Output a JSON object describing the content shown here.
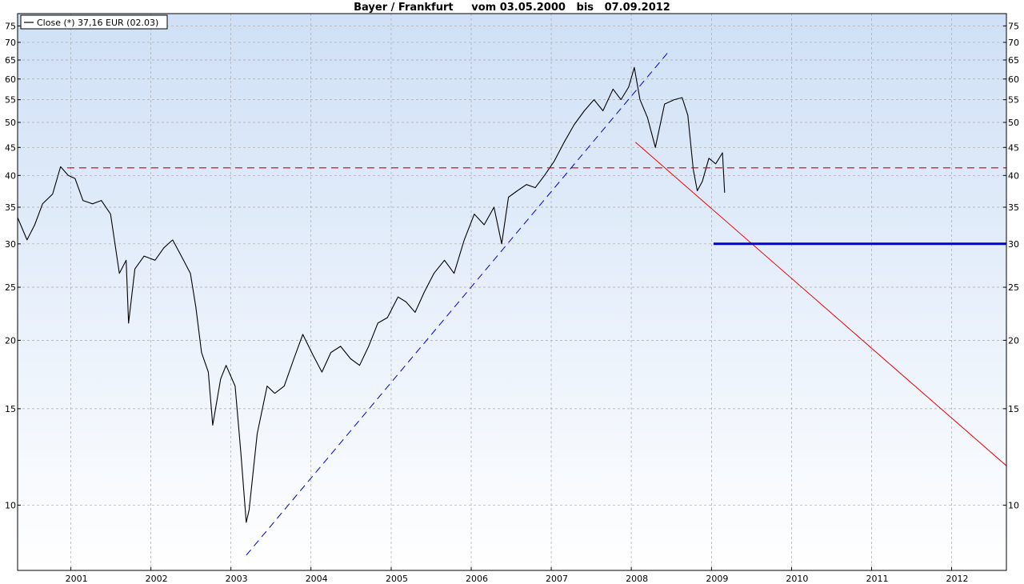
{
  "chart_data": {
    "type": "line",
    "title": "Bayer / Frankfurt     vom 03.05.2000   bis   07.09.2012",
    "legend": {
      "label": "Close (*) 37,16 EUR (02.03)",
      "placement": "top-left"
    },
    "y_scale": "log",
    "ylim": [
      7.6,
      79
    ],
    "xlim": [
      "2000-05-03",
      "2012-09-07"
    ],
    "y_ticks": [
      10,
      15,
      20,
      25,
      30,
      35,
      40,
      45,
      50,
      55,
      60,
      65,
      70,
      75
    ],
    "x_ticks": [
      "2001",
      "2002",
      "2003",
      "2004",
      "2005",
      "2006",
      "2007",
      "2008",
      "2009",
      "2010",
      "2011",
      "2012"
    ],
    "grid": true,
    "colors": {
      "background_top": "#cfe0f6",
      "background_bottom": "#ffffff",
      "price_line": "#000000",
      "resistance_line": "#cc0000",
      "blue_trendline": "#0000cc",
      "red_trendline": "#ee0000",
      "support_line": "#0000dd",
      "grid": "#a8a8a8"
    },
    "series": [
      {
        "name": "Close (*)",
        "style": "solid-thin",
        "x": [
          "2000-05-03",
          "2000-06-15",
          "2000-07-20",
          "2000-08-25",
          "2000-10-10",
          "2000-11-15",
          "2000-12-20",
          "2001-01-20",
          "2001-02-25",
          "2001-04-10",
          "2001-05-20",
          "2001-07-01",
          "2001-08-10",
          "2001-09-10",
          "2001-09-21",
          "2001-10-20",
          "2001-12-01",
          "2002-01-20",
          "2002-03-01",
          "2002-04-10",
          "2002-05-20",
          "2002-06-30",
          "2002-07-25",
          "2002-08-20",
          "2002-09-20",
          "2002-10-10",
          "2002-11-15",
          "2002-12-10",
          "2003-01-20",
          "2003-02-15",
          "2003-03-12",
          "2003-03-25",
          "2003-05-01",
          "2003-06-15",
          "2003-07-20",
          "2003-09-01",
          "2003-10-15",
          "2003-11-25",
          "2004-01-10",
          "2004-02-20",
          "2004-04-01",
          "2004-05-15",
          "2004-06-30",
          "2004-08-10",
          "2004-09-20",
          "2004-11-01",
          "2004-12-15",
          "2005-02-01",
          "2005-03-10",
          "2005-04-20",
          "2005-06-01",
          "2005-07-15",
          "2005-09-01",
          "2005-10-15",
          "2005-11-30",
          "2006-01-15",
          "2006-03-01",
          "2006-04-15",
          "2006-05-20",
          "2006-06-20",
          "2006-07-30",
          "2006-09-10",
          "2006-10-20",
          "2006-12-01",
          "2007-01-15",
          "2007-03-01",
          "2007-04-15",
          "2007-06-01",
          "2007-07-15",
          "2007-08-25",
          "2007-10-10",
          "2007-11-15",
          "2007-12-20",
          "2008-01-15",
          "2008-02-10",
          "2008-03-15",
          "2008-04-20",
          "2008-06-01",
          "2008-07-15",
          "2008-08-20",
          "2008-09-15",
          "2008-10-10",
          "2008-10-28",
          "2008-11-20",
          "2008-12-20",
          "2009-01-20",
          "2009-02-20",
          "2009-03-02"
        ],
        "values": [
          33.5,
          30.5,
          32.5,
          35.5,
          37.0,
          41.5,
          40.0,
          39.5,
          36.0,
          35.5,
          36.0,
          34.0,
          26.5,
          28.0,
          21.5,
          27.0,
          28.5,
          28.0,
          29.5,
          30.5,
          28.5,
          26.5,
          23.0,
          19.0,
          17.5,
          14.0,
          17.0,
          18.0,
          16.5,
          12.5,
          9.3,
          9.8,
          13.5,
          16.5,
          16.0,
          16.5,
          18.5,
          20.5,
          18.8,
          17.5,
          19.0,
          19.5,
          18.5,
          18.0,
          19.5,
          21.5,
          22.0,
          24.0,
          23.5,
          22.5,
          24.5,
          26.5,
          28.0,
          26.5,
          30.5,
          34.0,
          32.5,
          35.0,
          30.0,
          36.5,
          37.5,
          38.5,
          38.0,
          40.0,
          42.5,
          46.0,
          49.5,
          52.5,
          55.0,
          52.5,
          57.5,
          55.0,
          58.0,
          63.0,
          55.0,
          51.0,
          45.0,
          54.0,
          55.0,
          55.5,
          51.5,
          41.0,
          37.5,
          39.0,
          43.0,
          42.0,
          44.0,
          37.2
        ]
      },
      {
        "name": "",
        "style": "dashed-red-horizontal",
        "x": [
          "2000-12-15",
          "2012-09-07"
        ],
        "values": [
          41.3,
          41.3
        ]
      },
      {
        "name": "",
        "style": "dashed-blue-trendline",
        "x": [
          "2003-03-12",
          "2008-06-15"
        ],
        "values": [
          8.1,
          67.0
        ]
      },
      {
        "name": "",
        "style": "solid-red-trendline",
        "x": [
          "2008-01-20",
          "2012-09-07"
        ],
        "values": [
          46.0,
          11.8
        ]
      },
      {
        "name": "",
        "style": "solid-blue-horizontal-thick",
        "x": [
          "2009-01-10",
          "2012-09-07"
        ],
        "values": [
          30.0,
          30.0
        ]
      }
    ]
  }
}
